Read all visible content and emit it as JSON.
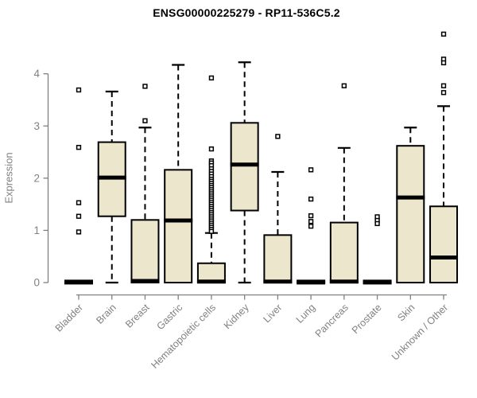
{
  "chart_data": {
    "type": "boxplot",
    "title": "ENSG00000225279 - RP11-536C5.2",
    "ylabel": "Expression",
    "xlabel": "",
    "ylim": [
      0,
      4.8
    ],
    "y_ticks": [
      "0",
      "1",
      "2",
      "3",
      "4"
    ],
    "grid": false,
    "legend": "none",
    "categories": [
      "Bladder",
      "Brain",
      "Breast",
      "Gastric",
      "Hematopoietic cells",
      "Kidney",
      "Liver",
      "Lung",
      "Pancreas",
      "Prostate",
      "Skin",
      "Unknown / Other"
    ],
    "series": [
      {
        "label": "Bladder",
        "q1": 0,
        "median": 0.01,
        "q3": 0.02,
        "whisker_low": 0,
        "whisker_high": 0.02,
        "outliers": [
          3.69,
          2.59,
          1.53,
          1.27,
          0.97
        ]
      },
      {
        "label": "Brain",
        "q1": 1.27,
        "median": 2.01,
        "q3": 2.69,
        "whisker_low": 0,
        "whisker_high": 3.66,
        "outliers": []
      },
      {
        "label": "Breast",
        "q1": 0,
        "median": 0.03,
        "q3": 1.2,
        "whisker_low": 0,
        "whisker_high": 2.97,
        "outliers": [
          3.76,
          3.1
        ]
      },
      {
        "label": "Gastric",
        "q1": 0,
        "median": 1.19,
        "q3": 2.16,
        "whisker_low": 0,
        "whisker_high": 4.17,
        "outliers": []
      },
      {
        "label": "Hematopoietic cells",
        "q1": 0,
        "median": 0.02,
        "q3": 0.37,
        "whisker_low": 0,
        "whisker_high": 0.95,
        "outliers": [
          3.92,
          2.56,
          2.33,
          2.29,
          2.24,
          2.18,
          2.13,
          2.08,
          2.03,
          1.98,
          1.94,
          1.9,
          1.86,
          1.82,
          1.78,
          1.74,
          1.7,
          1.66,
          1.62,
          1.58,
          1.54,
          1.5,
          1.46,
          1.42,
          1.38,
          1.34,
          1.3,
          1.26,
          1.22,
          1.18,
          1.14,
          1.1,
          1.06,
          1.02,
          0.98
        ]
      },
      {
        "label": "Kidney",
        "q1": 1.38,
        "median": 2.26,
        "q3": 3.06,
        "whisker_low": 0,
        "whisker_high": 4.22,
        "outliers": []
      },
      {
        "label": "Liver",
        "q1": 0,
        "median": 0.02,
        "q3": 0.91,
        "whisker_low": 0,
        "whisker_high": 2.12,
        "outliers": [
          2.8
        ]
      },
      {
        "label": "Lung",
        "q1": 0,
        "median": 0.01,
        "q3": 0.02,
        "whisker_low": 0,
        "whisker_high": 0.02,
        "outliers": [
          2.16,
          1.6,
          1.28,
          1.17,
          1.08
        ]
      },
      {
        "label": "Pancreas",
        "q1": 0,
        "median": 0.02,
        "q3": 1.15,
        "whisker_low": 0,
        "whisker_high": 2.58,
        "outliers": [
          3.77
        ]
      },
      {
        "label": "Prostate",
        "q1": 0,
        "median": 0.01,
        "q3": 0.02,
        "whisker_low": 0,
        "whisker_high": 0.02,
        "outliers": [
          1.26,
          1.19,
          1.13
        ]
      },
      {
        "label": "Skin",
        "q1": 0,
        "median": 1.63,
        "q3": 2.62,
        "whisker_low": 0,
        "whisker_high": 2.97,
        "outliers": []
      },
      {
        "label": "Unknown / Other",
        "q1": 0,
        "median": 0.48,
        "q3": 1.46,
        "whisker_low": 0,
        "whisker_high": 3.38,
        "outliers": [
          4.76,
          4.28,
          4.21,
          3.77,
          3.64
        ]
      }
    ],
    "colors": {
      "box_fill": "#ECE6CC",
      "box_stroke": "#000000",
      "median": "#000000",
      "whisker": "#000000",
      "outlier_stroke": "#000000",
      "outlier_fill": "#FFFFFF",
      "axis": "#808080",
      "tick_label": "#808080",
      "title": "#000000",
      "background": "#FFFFFF"
    }
  }
}
